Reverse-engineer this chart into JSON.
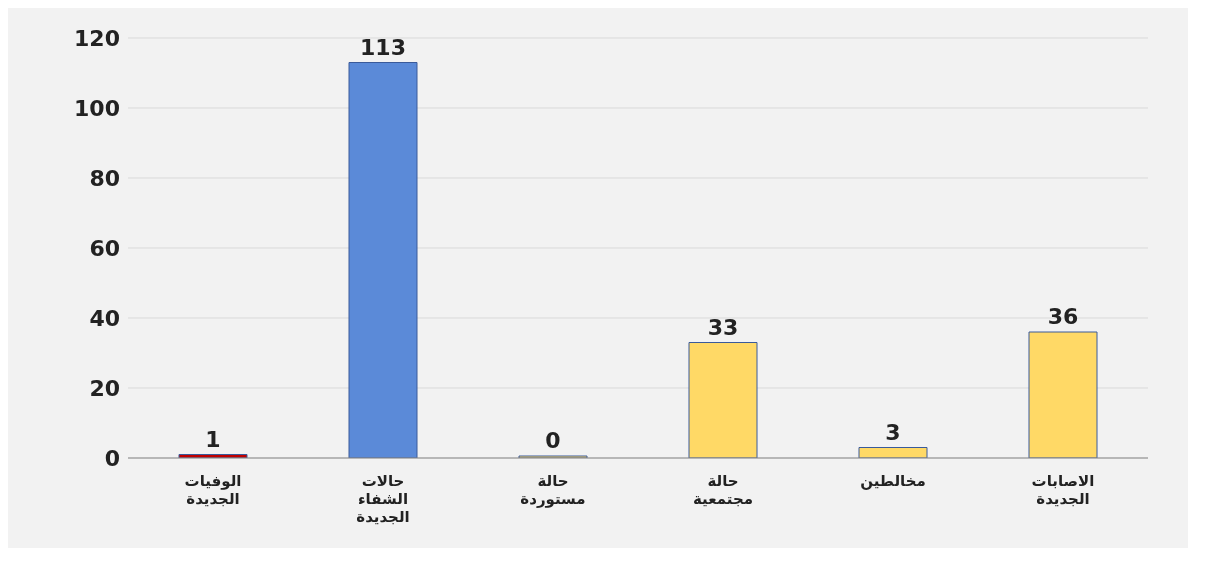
{
  "chart_data": {
    "type": "bar",
    "categories": [
      "الوفيات الجديدة",
      "حالات الشفاء الجديدة",
      "حالة مستوردة",
      "حالة مجتمعية",
      "مخالطين",
      "الاصابات الجديدة"
    ],
    "values": [
      1,
      113,
      0,
      33,
      3,
      36
    ],
    "colors": [
      "#c00000",
      "#5b8ad8",
      "#ffd966",
      "#ffd966",
      "#ffd966",
      "#ffd966"
    ],
    "ylim": [
      0,
      120
    ],
    "yticks": [
      0,
      20,
      40,
      60,
      80,
      100,
      120
    ],
    "grid": "y",
    "data_labels": true
  }
}
